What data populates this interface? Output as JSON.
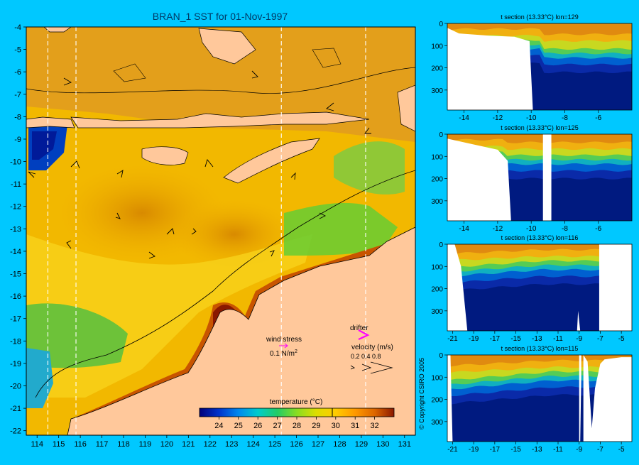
{
  "main_map": {
    "title": "BRAN_1 SST for 01-Nov-1997",
    "type": "heatmap",
    "lon_ticks": [
      "114",
      "115",
      "116",
      "117",
      "118",
      "119",
      "120",
      "121",
      "122",
      "123",
      "124",
      "125",
      "126",
      "127",
      "128",
      "129",
      "130",
      "131"
    ],
    "lat_ticks": [
      "-4",
      "-5",
      "-6",
      "-7",
      "-8",
      "-9",
      "-10",
      "-11",
      "-12",
      "-13",
      "-14",
      "-15",
      "-16",
      "-17",
      "-18",
      "-19",
      "-20",
      "-21",
      "-22"
    ],
    "xlim": [
      113.5,
      131.5
    ],
    "ylim": [
      -22.2,
      -4
    ],
    "section_lines_lon": [
      114.5,
      115.8,
      125.3,
      129.2
    ],
    "colorbar": {
      "label": "temperature (°C)",
      "ticks": [
        "24",
        "25",
        "26",
        "27",
        "28",
        "29",
        "30",
        "31",
        "32"
      ],
      "range": [
        23,
        33
      ],
      "colors": [
        "#00007a",
        "#0033cc",
        "#0088ee",
        "#00cccc",
        "#22cc66",
        "#88dd22",
        "#dddd00",
        "#ffcc00",
        "#ff9900",
        "#dd6600",
        "#b84000",
        "#8a1800"
      ]
    },
    "legend": {
      "wind_stress_label": "wind stress",
      "wind_stress_value": "0.1 N/m",
      "wind_stress_sup": "2",
      "drifter_label": "drifter",
      "velocity_label": "velocity (m/s)",
      "velocity_ticks": "0.2 0.4 0.8"
    },
    "copyright": "© Copyright CSIRO 2005"
  },
  "sections": [
    {
      "title": "t section (13.33°C) lon=129",
      "x_ticks": [
        "-14",
        "-12",
        "-10",
        "-8",
        "-6"
      ],
      "y_ticks": [
        "0",
        "100",
        "200",
        "300"
      ],
      "xlim": [
        -15,
        -4
      ],
      "ylim": [
        0,
        390
      ]
    },
    {
      "title": "t section (13.33°C) lon=125",
      "x_ticks": [
        "-14",
        "-12",
        "-10",
        "-8",
        "-6"
      ],
      "y_ticks": [
        "0",
        "100",
        "200",
        "300"
      ],
      "xlim": [
        -15,
        -4
      ],
      "ylim": [
        0,
        390
      ]
    },
    {
      "title": "t section (13.33°C) lon=116",
      "x_ticks": [
        "-21",
        "-19",
        "-17",
        "-15",
        "-13",
        "-11",
        "-9",
        "-7",
        "-5"
      ],
      "y_ticks": [
        "0",
        "100",
        "200",
        "300"
      ],
      "xlim": [
        -21.5,
        -4
      ],
      "ylim": [
        0,
        390
      ]
    },
    {
      "title": "t section (13.33°C) lon=115",
      "x_ticks": [
        "-21",
        "-19",
        "-17",
        "-15",
        "-13",
        "-11",
        "-9",
        "-7",
        "-5"
      ],
      "y_ticks": [
        "0",
        "100",
        "200",
        "300"
      ],
      "xlim": [
        -21.5,
        -4
      ],
      "ylim": [
        0,
        390
      ]
    }
  ],
  "colors": {
    "background": "#00c8ff",
    "land": "#ffc89b",
    "ocean_warm": "#f5a800",
    "drifter": "#ff00ff"
  }
}
